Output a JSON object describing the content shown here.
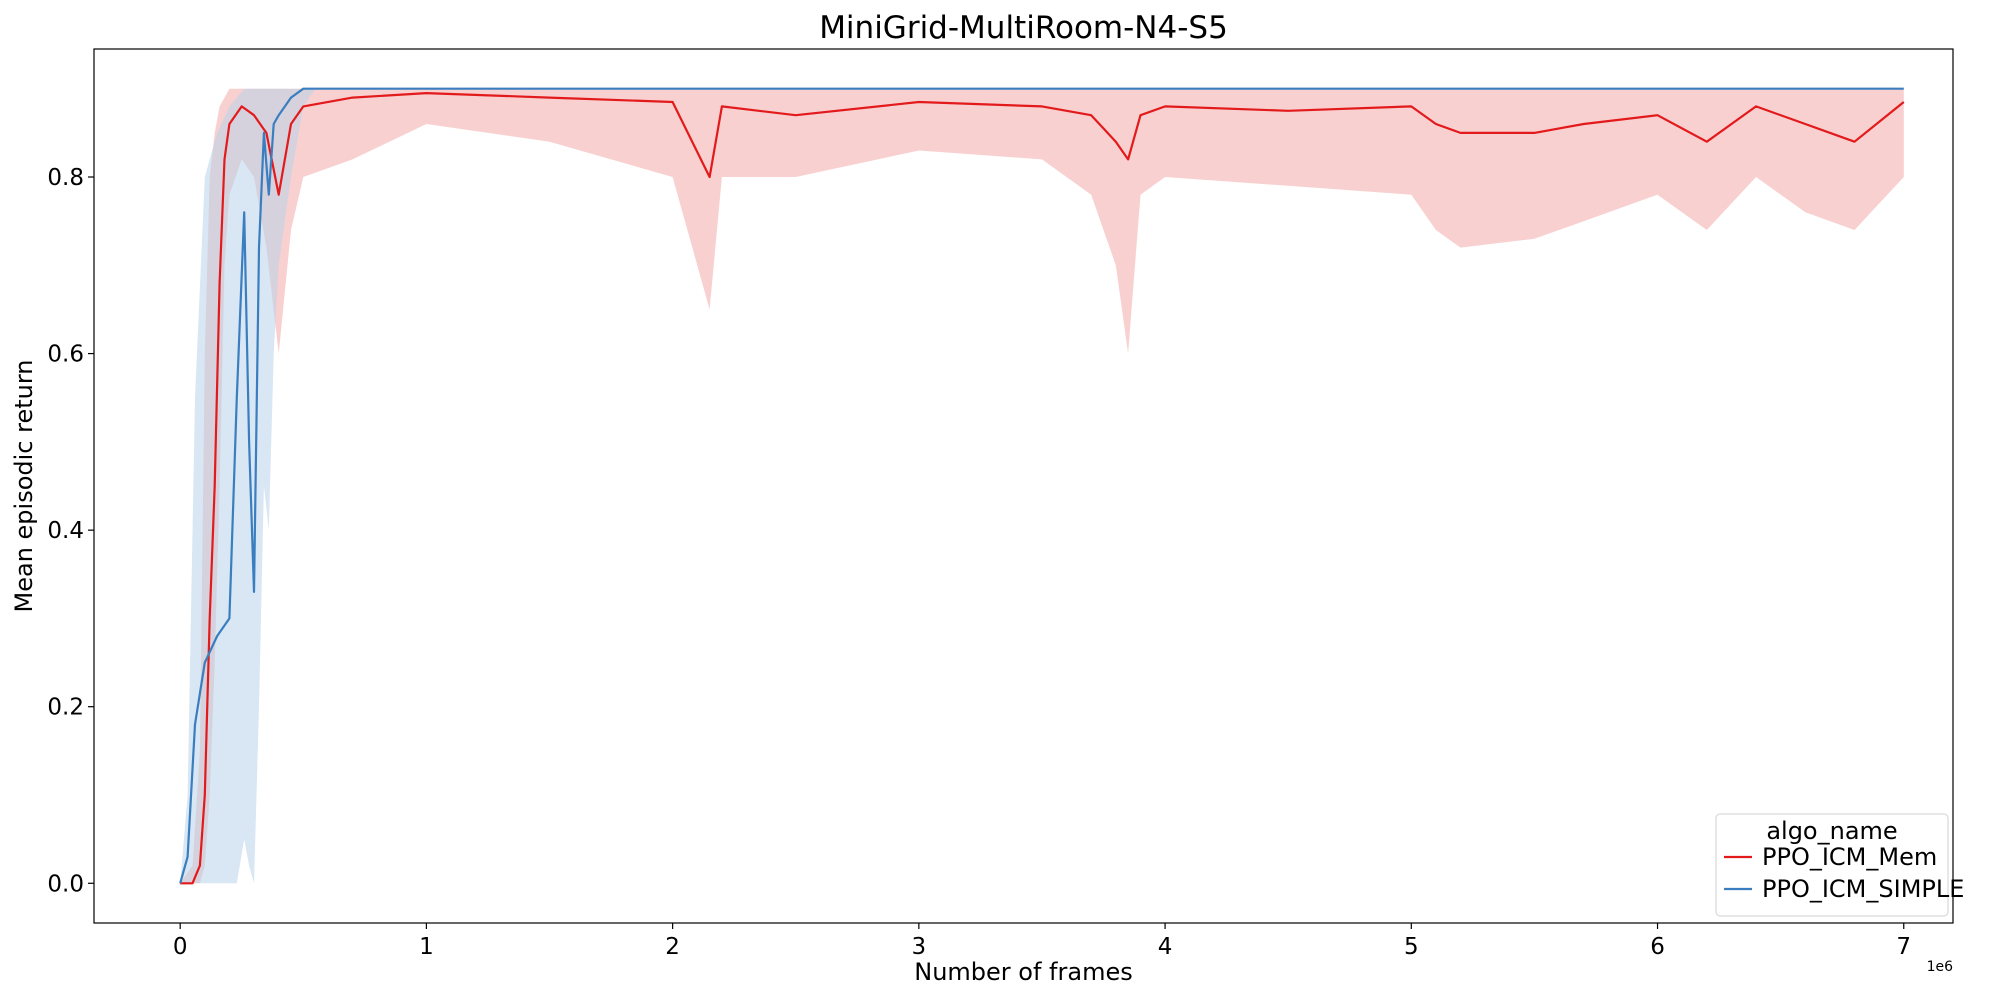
{
  "chart_data": {
    "type": "line",
    "title": "MiniGrid-MultiRoom-N4-S5",
    "xlabel": "Number of frames",
    "ylabel": "Mean episodic return",
    "x_exponent_label": "1e6",
    "xlim": [
      -350000,
      7200000
    ],
    "ylim": [
      -0.045,
      0.945
    ],
    "x_ticks": [
      0,
      1000000,
      2000000,
      3000000,
      4000000,
      5000000,
      6000000,
      7000000
    ],
    "x_tick_labels": [
      "0",
      "1",
      "2",
      "3",
      "4",
      "5",
      "6",
      "7"
    ],
    "y_ticks": [
      0.0,
      0.2,
      0.4,
      0.6,
      0.8
    ],
    "y_tick_labels": [
      "0.0",
      "0.2",
      "0.4",
      "0.6",
      "0.8"
    ],
    "grid": false,
    "legend": {
      "title": "algo_name",
      "position": "bottom-right"
    },
    "series": [
      {
        "name": "PPO_ICM_Mem",
        "color": "#e31a1c",
        "band_color": "#f4a9a9",
        "x": [
          0,
          50000,
          80000,
          100000,
          120000,
          140000,
          160000,
          180000,
          200000,
          250000,
          300000,
          350000,
          400000,
          450000,
          500000,
          700000,
          1000000,
          1500000,
          2000000,
          2150000,
          2200000,
          2500000,
          3000000,
          3500000,
          3700000,
          3800000,
          3850000,
          3900000,
          4000000,
          4500000,
          5000000,
          5100000,
          5200000,
          5500000,
          5700000,
          6000000,
          6200000,
          6400000,
          6600000,
          6800000,
          7000000
        ],
        "y": [
          0.0,
          0.0,
          0.02,
          0.1,
          0.3,
          0.45,
          0.68,
          0.82,
          0.86,
          0.88,
          0.87,
          0.85,
          0.78,
          0.86,
          0.88,
          0.89,
          0.895,
          0.89,
          0.885,
          0.8,
          0.88,
          0.87,
          0.885,
          0.88,
          0.87,
          0.84,
          0.82,
          0.87,
          0.88,
          0.875,
          0.88,
          0.86,
          0.85,
          0.85,
          0.86,
          0.87,
          0.84,
          0.88,
          0.86,
          0.84,
          0.885
        ],
        "band_lower": [
          0.0,
          0.0,
          0.0,
          0.02,
          0.1,
          0.25,
          0.45,
          0.7,
          0.78,
          0.82,
          0.8,
          0.72,
          0.6,
          0.74,
          0.8,
          0.82,
          0.86,
          0.84,
          0.8,
          0.65,
          0.8,
          0.8,
          0.83,
          0.82,
          0.78,
          0.7,
          0.6,
          0.78,
          0.8,
          0.79,
          0.78,
          0.74,
          0.72,
          0.73,
          0.75,
          0.78,
          0.74,
          0.8,
          0.76,
          0.74,
          0.8
        ],
        "band_upper": [
          0.0,
          0.02,
          0.15,
          0.6,
          0.8,
          0.85,
          0.88,
          0.89,
          0.9,
          0.9,
          0.9,
          0.9,
          0.9,
          0.9,
          0.9,
          0.9,
          0.9,
          0.9,
          0.9,
          0.9,
          0.9,
          0.9,
          0.9,
          0.9,
          0.9,
          0.9,
          0.9,
          0.9,
          0.9,
          0.9,
          0.9,
          0.9,
          0.9,
          0.9,
          0.9,
          0.9,
          0.9,
          0.9,
          0.9,
          0.9,
          0.9
        ]
      },
      {
        "name": "PPO_ICM_SIMPLE",
        "color": "#3a7ebf",
        "band_color": "#b8d3ea",
        "x": [
          0,
          30000,
          60000,
          100000,
          150000,
          200000,
          230000,
          260000,
          280000,
          300000,
          320000,
          340000,
          360000,
          380000,
          400000,
          450000,
          500000,
          550000,
          7000000
        ],
        "y": [
          0.0,
          0.03,
          0.18,
          0.25,
          0.28,
          0.3,
          0.55,
          0.76,
          0.5,
          0.33,
          0.72,
          0.85,
          0.78,
          0.86,
          0.87,
          0.89,
          0.9,
          0.9,
          0.9
        ],
        "band_lower": [
          0.0,
          0.0,
          0.0,
          0.0,
          0.0,
          0.0,
          0.0,
          0.05,
          0.02,
          0.0,
          0.2,
          0.45,
          0.4,
          0.6,
          0.7,
          0.8,
          0.88,
          0.9,
          0.9
        ],
        "band_upper": [
          0.0,
          0.1,
          0.55,
          0.8,
          0.85,
          0.88,
          0.89,
          0.9,
          0.9,
          0.9,
          0.9,
          0.9,
          0.9,
          0.9,
          0.9,
          0.9,
          0.9,
          0.9,
          0.9
        ]
      }
    ]
  }
}
